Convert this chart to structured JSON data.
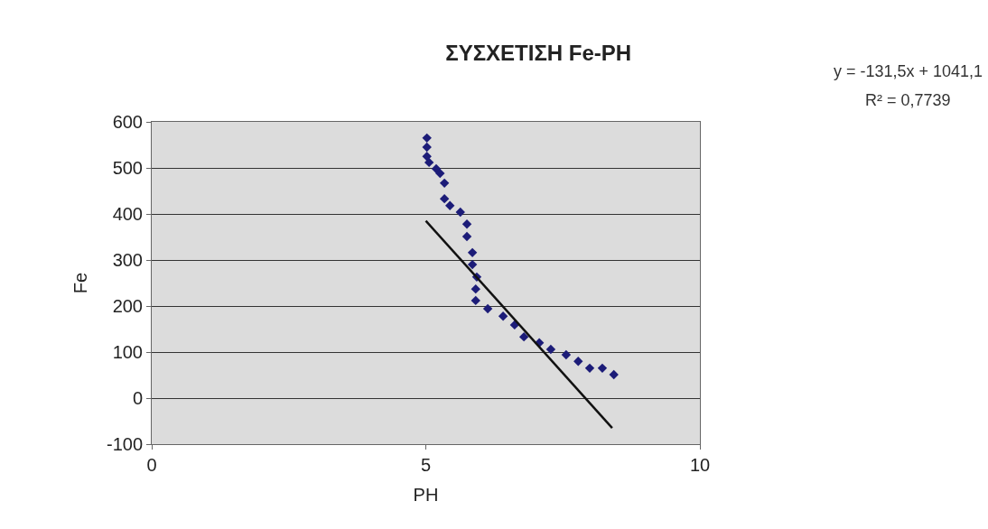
{
  "chart_data": {
    "type": "scatter",
    "title": "ΣΥΣΧΕΤΙΣΗ Fe-PH",
    "xlabel": "PH",
    "ylabel": "Fe",
    "annotations": [
      "y = -131,5x + 1041,1",
      "R² = 0,7739"
    ],
    "xlim": [
      0,
      10
    ],
    "xticks": [
      0,
      5,
      10
    ],
    "ylim": [
      -100,
      600
    ],
    "yticks": [
      -100,
      0,
      100,
      200,
      300,
      400,
      500,
      600
    ],
    "grid": "y",
    "series": [
      {
        "marker": "diamond",
        "color": "#1c1c78",
        "x": [
          5.02,
          5.02,
          5.02,
          5.06,
          5.19,
          5.26,
          5.34,
          5.34,
          5.44,
          5.63,
          5.75,
          5.75,
          5.85,
          5.85,
          5.93,
          5.91,
          5.91,
          6.13,
          6.41,
          6.62,
          6.79,
          7.07,
          7.28,
          7.56,
          7.78,
          7.99,
          8.22,
          8.43
        ],
        "values": [
          565,
          545,
          525,
          512,
          498,
          488,
          467,
          433,
          418,
          404,
          378,
          351,
          316,
          290,
          263,
          237,
          212,
          194,
          178,
          159,
          133,
          120,
          106,
          94,
          80,
          65,
          65,
          51
        ]
      },
      {
        "type": "line",
        "marker": "none",
        "color": "#111111",
        "x": [
          5,
          8.4
        ],
        "values": [
          385,
          -65
        ]
      }
    ]
  }
}
